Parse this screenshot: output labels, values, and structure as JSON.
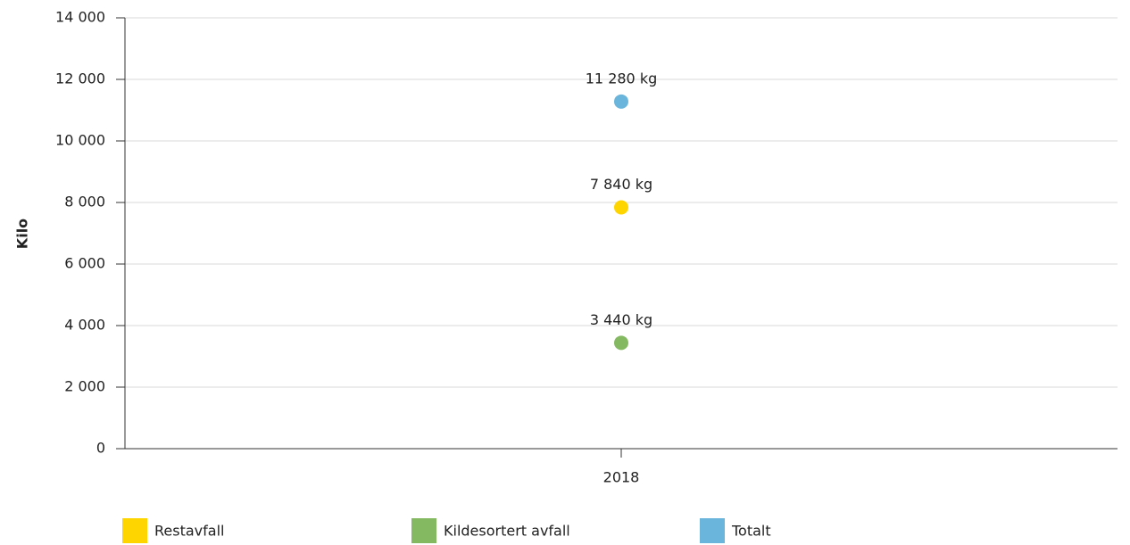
{
  "chart_data": {
    "type": "line",
    "y_label": "Kilo",
    "categories": [
      "2018"
    ],
    "series": [
      {
        "name": "Restavfall",
        "color": "#ffd500",
        "values": [
          7840
        ],
        "value_labels": [
          "7 840 kg"
        ]
      },
      {
        "name": "Kildesortert avfall",
        "color": "#84b962",
        "values": [
          3440
        ],
        "value_labels": [
          "3 440 kg"
        ]
      },
      {
        "name": "Totalt",
        "color": "#6ab5dc",
        "values": [
          11280
        ],
        "value_labels": [
          "11 280 kg"
        ]
      }
    ],
    "ylim": [
      0,
      14000
    ],
    "yticks": [
      0,
      {
        "value": 2000,
        "label": "2 000"
      },
      {
        "value": 4000,
        "label": "4 000"
      },
      {
        "value": 6000,
        "label": "6 000"
      },
      {
        "value": 8000,
        "label": "8 000"
      },
      {
        "value": 10000,
        "label": "10 000"
      },
      {
        "value": 12000,
        "label": "12 000"
      },
      {
        "value": 14000,
        "label": "14 000"
      }
    ],
    "grid": true,
    "legend": "bottom"
  }
}
